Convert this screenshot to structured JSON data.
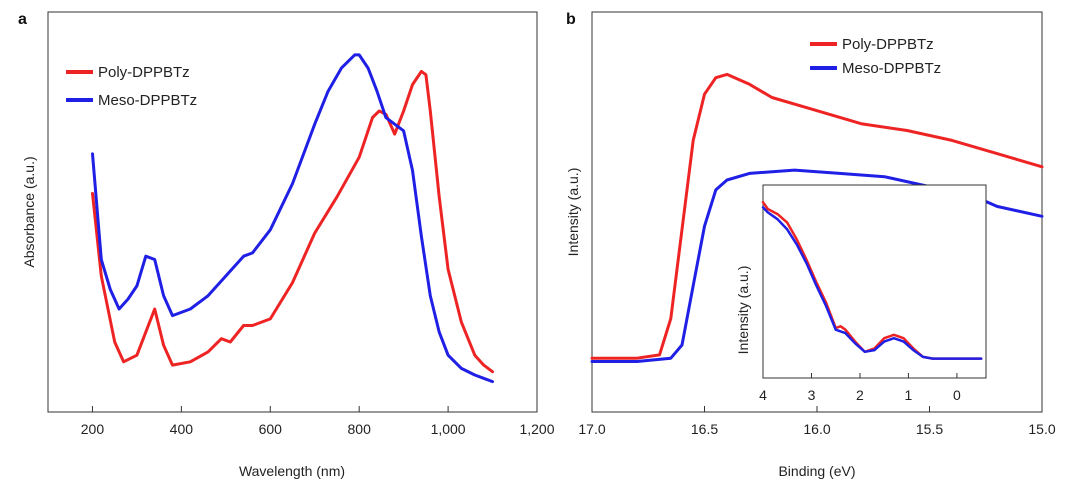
{
  "colors": {
    "red": "#ee2424",
    "blue": "#1f1fe6",
    "axis": "#333333"
  },
  "chart_data": [
    {
      "panel": "a",
      "type": "line",
      "xlabel": "Wavelength (nm)",
      "ylabel": "Absorbance (a.u.)",
      "xlim": [
        100,
        1200
      ],
      "ylim": [
        0,
        1
      ],
      "xticks": [
        200,
        400,
        600,
        800,
        1000,
        1200
      ],
      "xtick_labels": [
        "200",
        "400",
        "600",
        "800",
        "1,000",
        "1,200"
      ],
      "series": [
        {
          "name": "Poly-DPPBTz",
          "color": "#ee2424",
          "x": [
            200,
            220,
            250,
            270,
            300,
            320,
            340,
            360,
            380,
            420,
            460,
            490,
            510,
            540,
            560,
            600,
            650,
            700,
            750,
            800,
            830,
            845,
            860,
            880,
            900,
            920,
            940,
            950,
            960,
            980,
            1000,
            1030,
            1060,
            1080,
            1100
          ],
          "y": [
            0.55,
            0.3,
            0.1,
            0.04,
            0.06,
            0.13,
            0.2,
            0.09,
            0.03,
            0.04,
            0.07,
            0.11,
            0.1,
            0.15,
            0.15,
            0.17,
            0.28,
            0.43,
            0.54,
            0.66,
            0.78,
            0.8,
            0.79,
            0.73,
            0.8,
            0.88,
            0.92,
            0.91,
            0.8,
            0.54,
            0.32,
            0.16,
            0.06,
            0.03,
            0.01
          ]
        },
        {
          "name": "Meso-DPPBTz",
          "color": "#1f1fe6",
          "x": [
            200,
            220,
            240,
            260,
            280,
            300,
            320,
            340,
            360,
            380,
            420,
            460,
            500,
            540,
            560,
            600,
            650,
            700,
            730,
            760,
            790,
            800,
            820,
            840,
            860,
            880,
            900,
            920,
            940,
            960,
            980,
            1000,
            1030,
            1060,
            1080,
            1100
          ],
          "y": [
            0.67,
            0.35,
            0.26,
            0.2,
            0.23,
            0.27,
            0.36,
            0.35,
            0.24,
            0.18,
            0.2,
            0.24,
            0.3,
            0.36,
            0.37,
            0.44,
            0.58,
            0.76,
            0.86,
            0.93,
            0.97,
            0.97,
            0.93,
            0.86,
            0.78,
            0.76,
            0.74,
            0.62,
            0.42,
            0.24,
            0.13,
            0.06,
            0.02,
            0.0,
            -0.01,
            -0.02
          ]
        }
      ]
    },
    {
      "panel": "b",
      "type": "line",
      "xlabel": "Binding (eV)",
      "ylabel": "Intensity (a.u.)",
      "xlim": [
        17.0,
        15.0
      ],
      "ylim": [
        0,
        1
      ],
      "xticks": [
        17.0,
        16.5,
        16.0,
        15.5,
        15.0
      ],
      "xtick_labels": [
        "17.0",
        "16.5",
        "16.0",
        "15.5",
        "15.0"
      ],
      "series": [
        {
          "name": "Poly-DPPBTz",
          "color": "#ee2424",
          "x": [
            17.0,
            16.8,
            16.7,
            16.65,
            16.6,
            16.55,
            16.5,
            16.45,
            16.4,
            16.3,
            16.2,
            16.0,
            15.8,
            15.6,
            15.4,
            15.2,
            15.0
          ],
          "y": [
            0.06,
            0.06,
            0.07,
            0.18,
            0.45,
            0.72,
            0.86,
            0.91,
            0.92,
            0.89,
            0.85,
            0.81,
            0.77,
            0.75,
            0.72,
            0.68,
            0.64
          ]
        },
        {
          "name": "Meso-DPPBTz",
          "color": "#1f1fe6",
          "x": [
            17.0,
            16.8,
            16.65,
            16.6,
            16.55,
            16.5,
            16.45,
            16.4,
            16.3,
            16.1,
            15.9,
            15.7,
            15.5,
            15.3,
            15.2,
            15.0
          ],
          "y": [
            0.05,
            0.05,
            0.06,
            0.1,
            0.28,
            0.46,
            0.57,
            0.6,
            0.62,
            0.63,
            0.62,
            0.61,
            0.58,
            0.55,
            0.52,
            0.49
          ]
        }
      ],
      "inset": {
        "xlabel": "",
        "ylabel": "Intensity (a.u.)",
        "xlim": [
          4,
          -0.6
        ],
        "xticks": [
          4,
          3,
          2,
          1,
          0
        ],
        "xtick_labels": [
          "4",
          "3",
          "2",
          "1",
          "0"
        ],
        "series": [
          {
            "name": "Poly-DPPBTz",
            "color": "#ee2424",
            "x": [
              4.0,
              3.9,
              3.7,
              3.5,
              3.3,
              3.1,
              2.9,
              2.7,
              2.5,
              2.4,
              2.3,
              2.1,
              1.9,
              1.7,
              1.5,
              1.3,
              1.1,
              0.9,
              0.7,
              0.5,
              0.3,
              0.0,
              -0.3,
              -0.5
            ],
            "y": [
              0.94,
              0.9,
              0.87,
              0.82,
              0.72,
              0.6,
              0.47,
              0.35,
              0.2,
              0.21,
              0.19,
              0.12,
              0.06,
              0.08,
              0.14,
              0.16,
              0.14,
              0.08,
              0.03,
              0.02,
              0.02,
              0.02,
              0.02,
              0.02
            ]
          },
          {
            "name": "Meso-DPPBTz",
            "color": "#1f1fe6",
            "x": [
              4.0,
              3.9,
              3.7,
              3.5,
              3.3,
              3.1,
              2.9,
              2.7,
              2.5,
              2.4,
              2.3,
              2.1,
              1.9,
              1.7,
              1.5,
              1.3,
              1.1,
              0.9,
              0.7,
              0.5,
              0.3,
              0.0,
              -0.3,
              -0.5
            ],
            "y": [
              0.91,
              0.88,
              0.84,
              0.78,
              0.69,
              0.58,
              0.45,
              0.33,
              0.19,
              0.18,
              0.17,
              0.11,
              0.06,
              0.07,
              0.12,
              0.14,
              0.12,
              0.07,
              0.03,
              0.02,
              0.02,
              0.02,
              0.02,
              0.02
            ]
          }
        ]
      }
    }
  ]
}
